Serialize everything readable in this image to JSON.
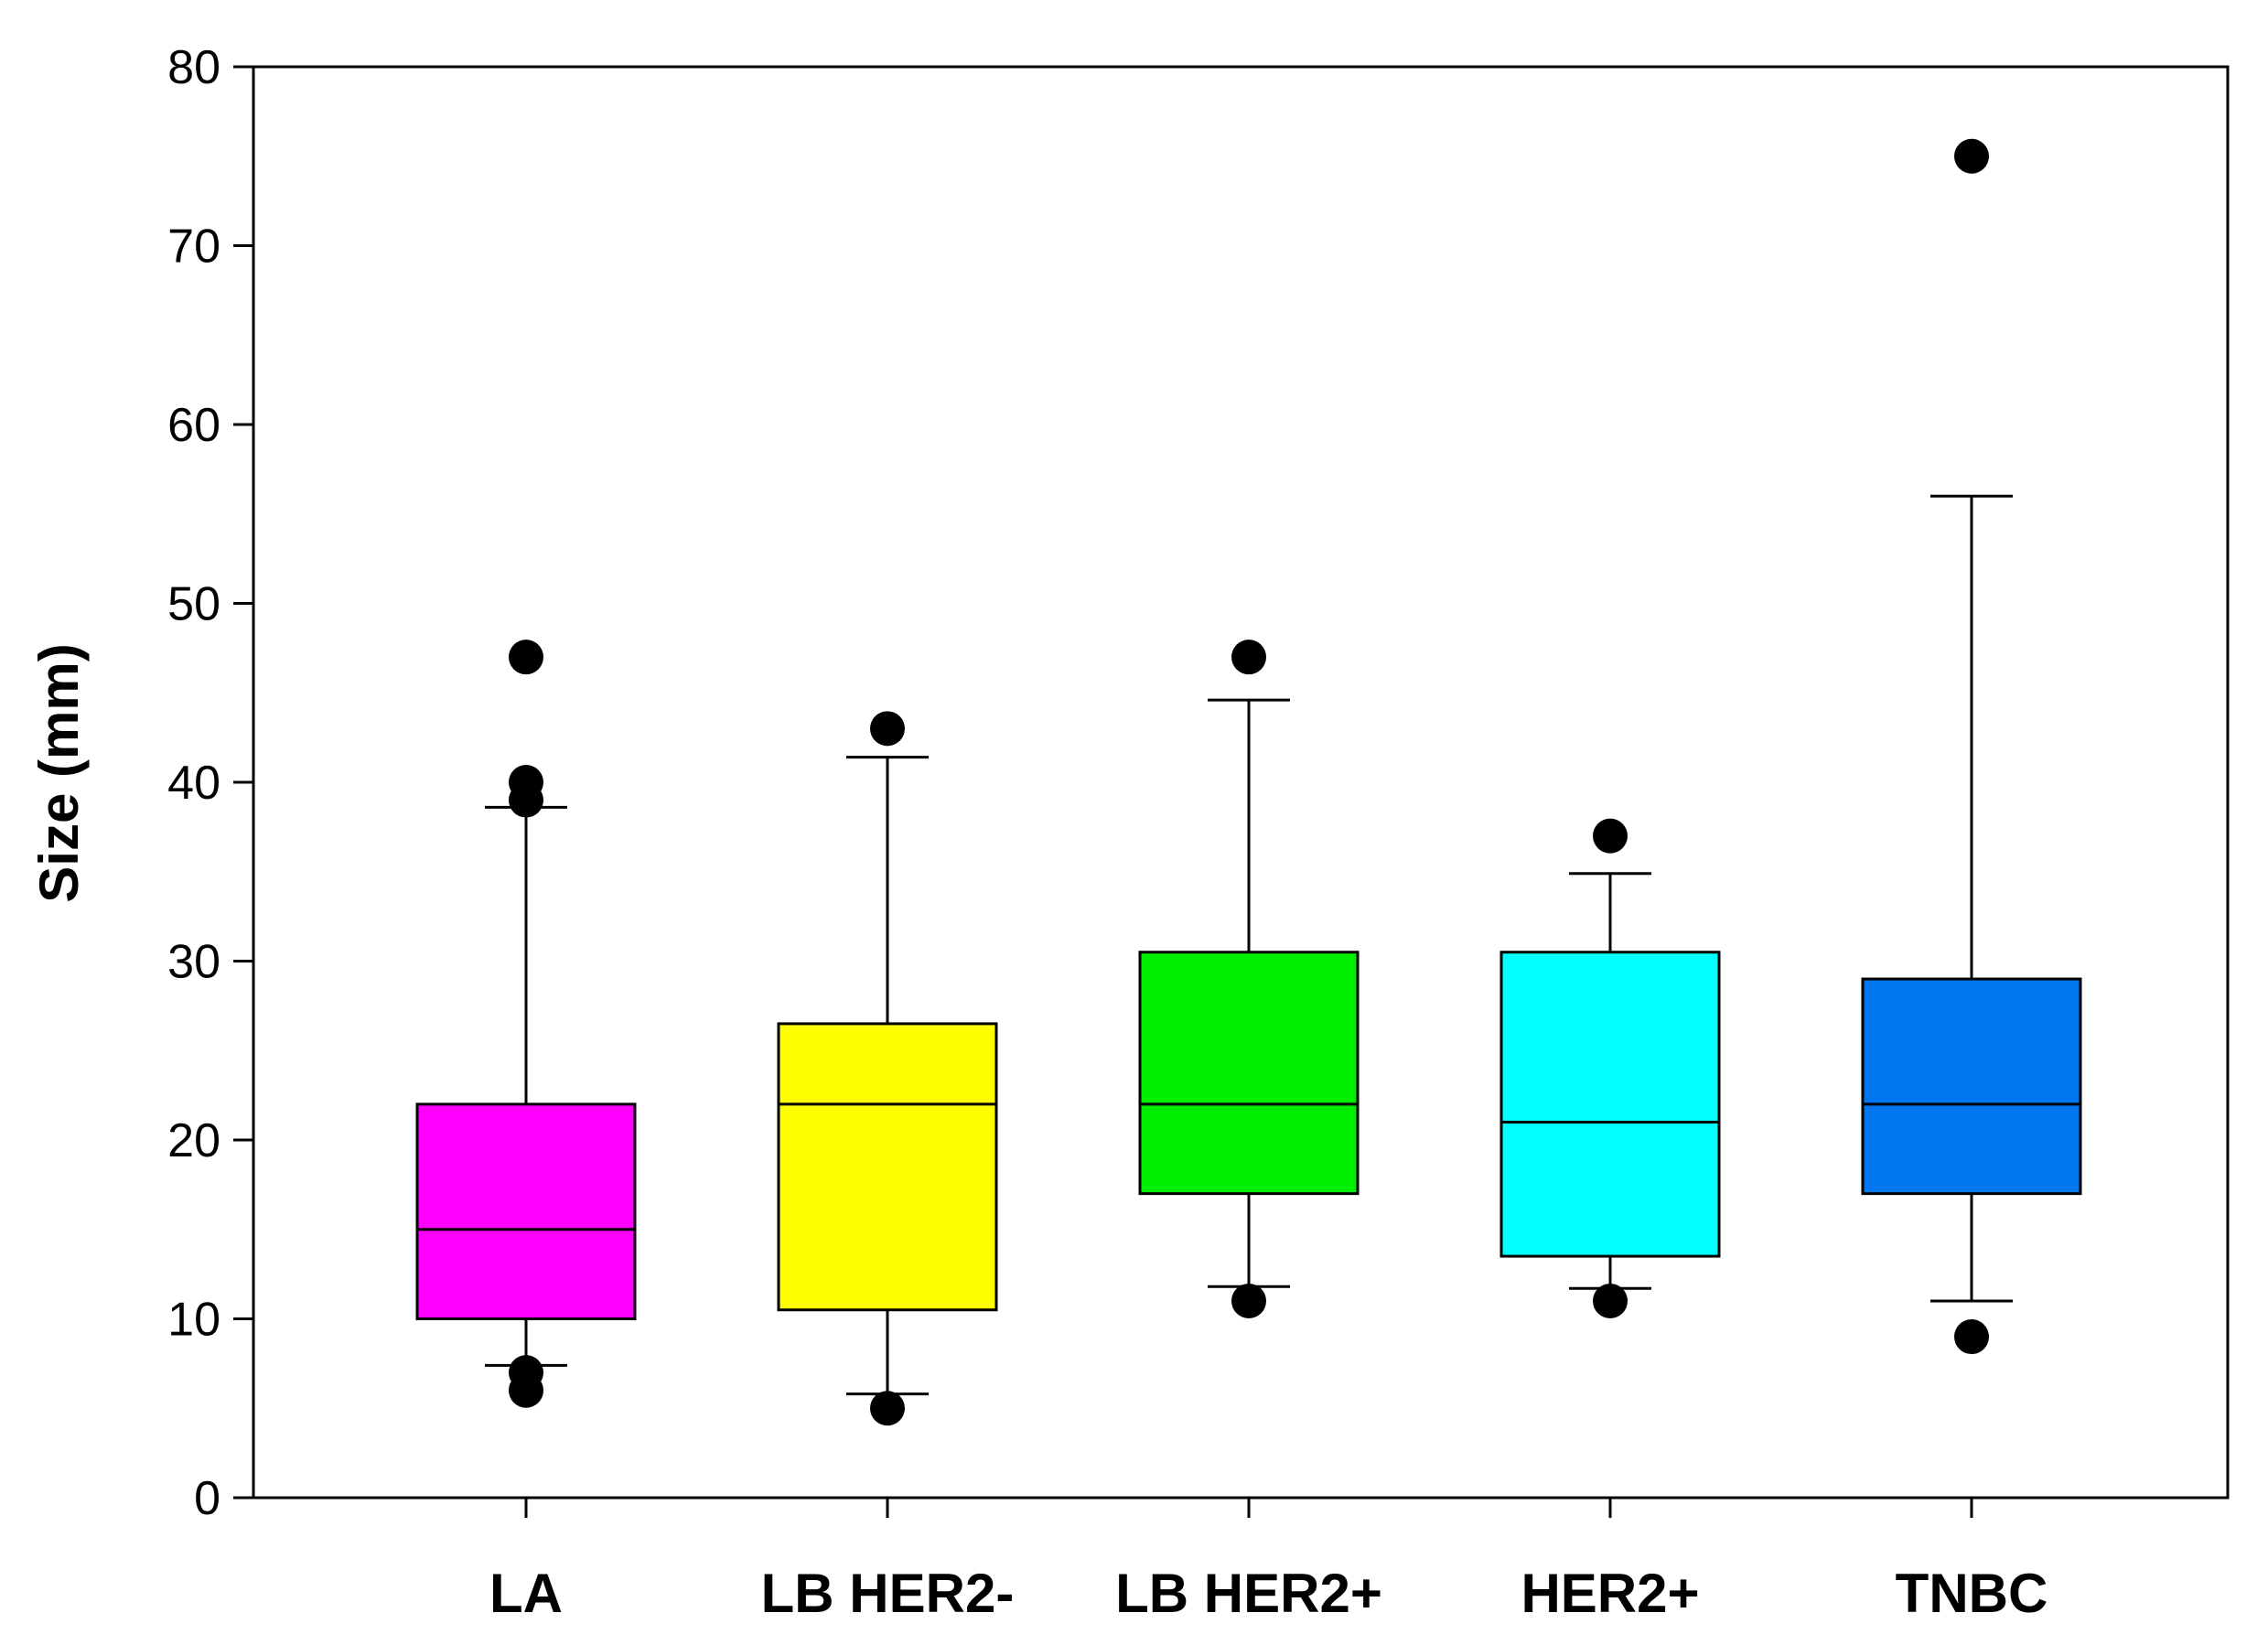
{
  "chart_data": {
    "type": "boxplot",
    "title": "",
    "xlabel": "",
    "ylabel": "Size (mm)",
    "ylim": [
      0,
      80
    ],
    "yticks": [
      0,
      10,
      20,
      30,
      40,
      50,
      60,
      70,
      80
    ],
    "ytick_labels": [
      "0",
      "10",
      "20",
      "30",
      "40",
      "50",
      "60",
      "70",
      "80"
    ],
    "grid": false,
    "categories": [
      "LA",
      "LB HER2-",
      "LB HER2+",
      "HER2+",
      "TNBC"
    ],
    "boxes": [
      {
        "name": "LA",
        "color": "#ff00ff",
        "whisker_low": 7.4,
        "q1": 10,
        "median": 15,
        "q3": 22,
        "whisker_high": 38.6,
        "outliers": [
          6,
          7,
          39,
          40,
          47
        ]
      },
      {
        "name": "LB HER2-",
        "color": "#ffff00",
        "whisker_low": 5.8,
        "q1": 10.5,
        "median": 22,
        "q3": 26.5,
        "whisker_high": 41.4,
        "outliers": [
          5,
          43
        ]
      },
      {
        "name": "LB HER2+",
        "color": "#00ee00",
        "whisker_low": 11.8,
        "q1": 17,
        "median": 22,
        "q3": 30.5,
        "whisker_high": 44.6,
        "outliers": [
          11,
          47
        ]
      },
      {
        "name": "HER2+",
        "color": "#00ffff",
        "whisker_low": 11.7,
        "q1": 13.5,
        "median": 21,
        "q3": 30.5,
        "whisker_high": 34.9,
        "outliers": [
          11,
          37
        ]
      },
      {
        "name": "TNBC",
        "color": "#0077f0",
        "whisker_low": 11,
        "q1": 17,
        "median": 22,
        "q3": 29,
        "whisker_high": 56,
        "outliers": [
          9,
          75
        ]
      }
    ]
  }
}
